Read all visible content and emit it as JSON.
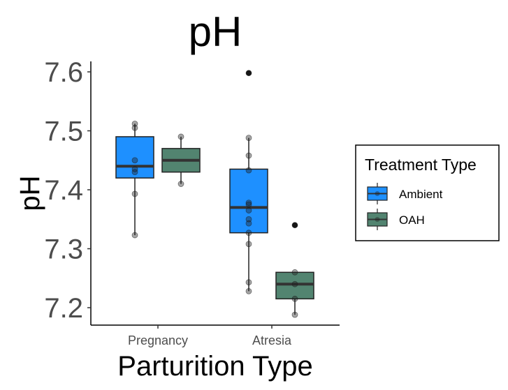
{
  "chart_data": {
    "type": "box",
    "title": "pH",
    "xlabel": "Parturition Type",
    "ylabel": "pH",
    "categories": [
      "Pregnancy",
      "Atresia"
    ],
    "ylim": [
      7.17,
      7.62
    ],
    "yticks": [
      7.2,
      7.3,
      7.4,
      7.5,
      7.6
    ],
    "ytick_labels": [
      "7.2",
      "7.3",
      "7.4",
      "7.5",
      "7.6"
    ],
    "grid": false,
    "legend": {
      "title": "Treatment Type",
      "position": "right",
      "entries": [
        "Ambient",
        "OAH"
      ]
    },
    "series": [
      {
        "name": "Ambient",
        "color": "#1e90ff",
        "boxes": [
          {
            "category": "Pregnancy",
            "q1": 7.42,
            "median": 7.44,
            "q3": 7.49,
            "whisker_low": 7.323,
            "whisker_high": 7.512,
            "outliers": [],
            "points": [
              7.512,
              7.505,
              7.45,
              7.435,
              7.43,
              7.393,
              7.323
            ]
          },
          {
            "category": "Atresia",
            "q1": 7.327,
            "median": 7.37,
            "q3": 7.435,
            "whisker_low": 7.228,
            "whisker_high": 7.488,
            "outliers": [
              7.598
            ],
            "points": [
              7.598,
              7.488,
              7.458,
              7.433,
              7.378,
              7.375,
              7.365,
              7.35,
              7.343,
              7.327,
              7.308,
              7.243,
              7.228
            ]
          }
        ]
      },
      {
        "name": "OAH",
        "color": "#528470",
        "boxes": [
          {
            "category": "Pregnancy",
            "q1": 7.43,
            "median": 7.45,
            "q3": 7.47,
            "whisker_low": 7.41,
            "whisker_high": 7.49,
            "outliers": [],
            "points": [
              7.49,
              7.41
            ]
          },
          {
            "category": "Atresia",
            "q1": 7.215,
            "median": 7.24,
            "q3": 7.26,
            "whisker_low": 7.188,
            "whisker_high": 7.26,
            "outliers": [
              7.34
            ],
            "points": [
              7.34,
              7.26,
              7.24,
              7.215,
              7.188
            ]
          }
        ]
      }
    ]
  }
}
